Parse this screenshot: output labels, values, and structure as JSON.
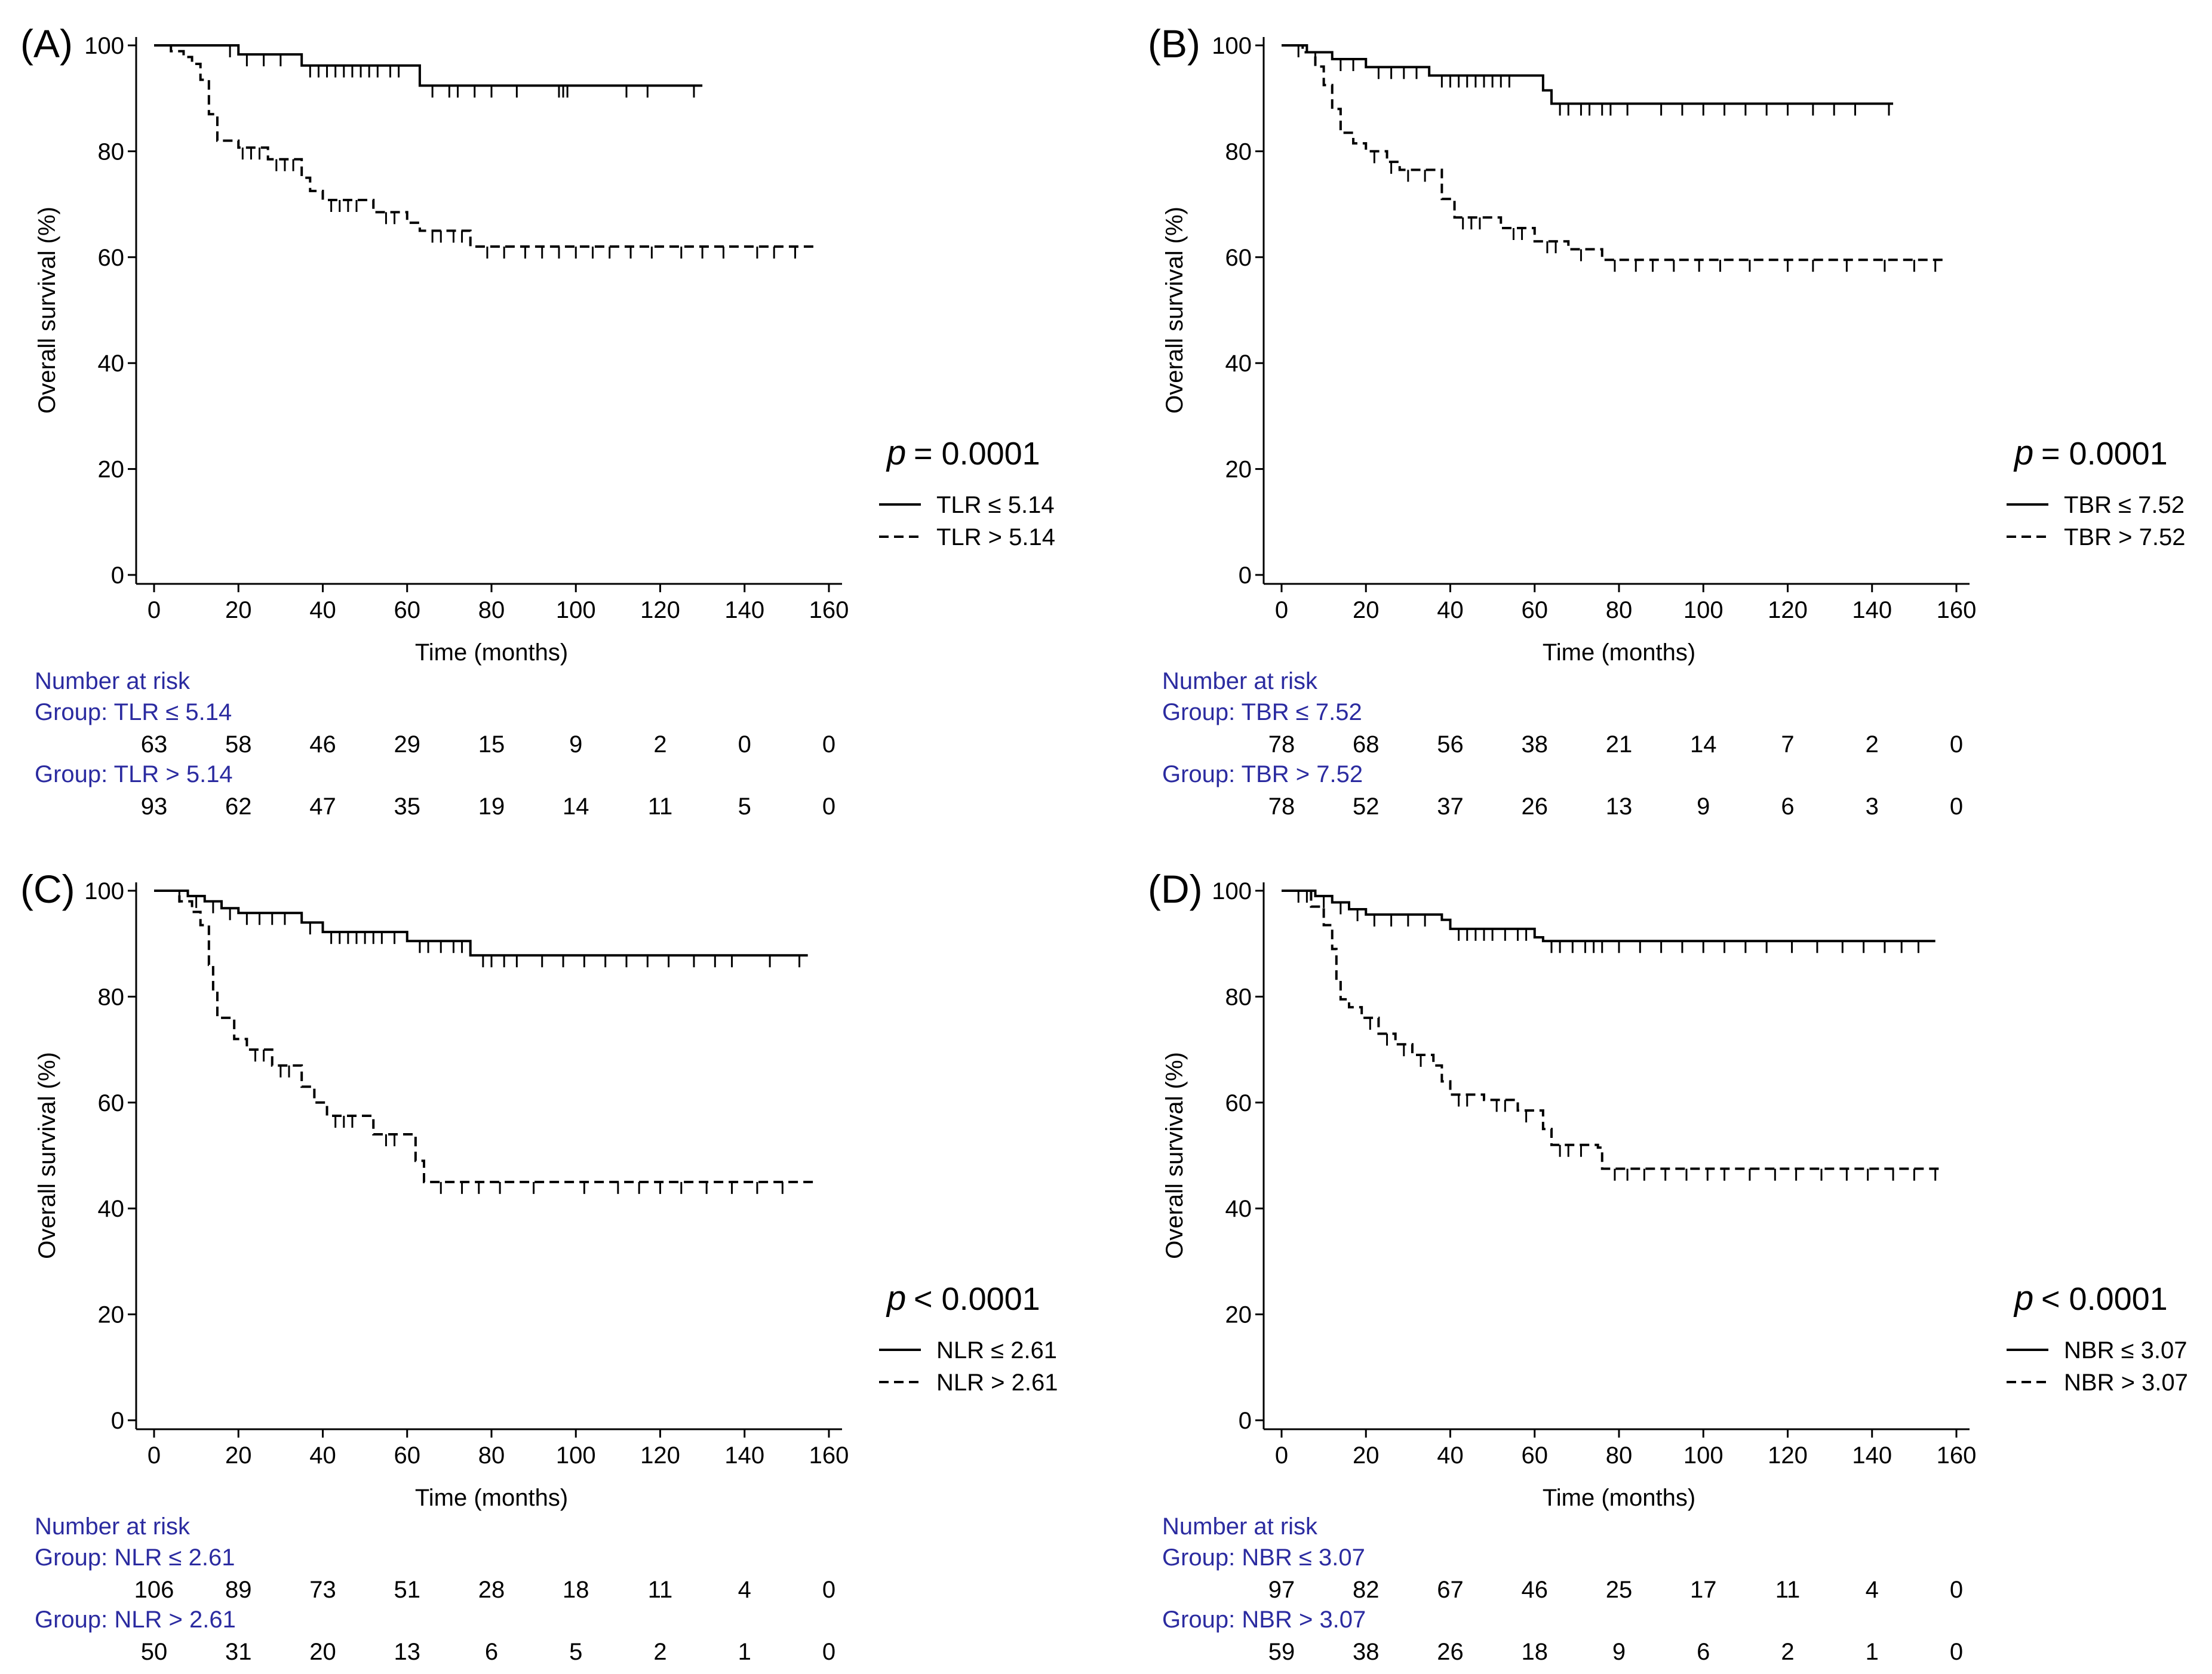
{
  "colors": {
    "line": "#000000",
    "risk_label": "#2b2ba0",
    "text": "#000000",
    "axis": "#000000"
  },
  "chart_data": [
    {
      "type": "line",
      "panel_label": "(A)",
      "xlabel": "Time (months)",
      "ylabel": "Overall survival (%)",
      "xlim": [
        0,
        160
      ],
      "ylim": [
        0,
        100
      ],
      "x_ticks": [
        0,
        20,
        40,
        60,
        80,
        100,
        120,
        140,
        160
      ],
      "y_ticks": [
        0,
        20,
        40,
        60,
        80,
        100
      ],
      "p_symbol": "p",
      "p_text": "= 0.0001",
      "series": [
        {
          "name": "TLR ≤ 5.14",
          "dash": "solid",
          "x": [
            0,
            20,
            35,
            63,
            130
          ],
          "y": [
            100,
            98.3,
            96.2,
            92.4,
            92.4
          ],
          "censor_x": [
            18,
            22,
            26,
            30,
            37,
            39,
            41,
            43,
            45,
            47,
            49,
            51,
            53,
            56,
            58,
            66,
            70,
            72,
            76,
            80,
            86,
            96,
            97,
            98,
            112,
            117,
            128
          ]
        },
        {
          "name": "TLR > 5.14",
          "dash": "dashed",
          "x": [
            0,
            4,
            7,
            9,
            11,
            13,
            15,
            20,
            27,
            35,
            37,
            40,
            52,
            60,
            63,
            75,
            157
          ],
          "y": [
            100,
            98.9,
            97.8,
            96.5,
            93.5,
            87,
            82,
            80.7,
            78.5,
            75,
            72.5,
            70.8,
            68.5,
            66.5,
            65,
            62,
            62
          ],
          "censor_x": [
            21,
            23,
            25,
            29,
            31,
            33,
            42,
            44,
            46,
            48,
            55,
            57,
            66,
            68,
            71,
            73,
            79,
            83,
            88,
            92,
            96,
            100,
            104,
            108,
            113,
            118,
            125,
            130,
            135,
            143,
            147,
            152
          ]
        }
      ],
      "risk_table": {
        "title": "Number at risk",
        "x": [
          0,
          20,
          40,
          60,
          80,
          100,
          120,
          140,
          160
        ],
        "groups": [
          {
            "label": "Group: TLR ≤ 5.14",
            "counts": [
              "63",
              "58",
              "46",
              "29",
              "15",
              "9",
              "2",
              "0",
              "0"
            ]
          },
          {
            "label": "Group: TLR > 5.14",
            "counts": [
              "93",
              "62",
              "47",
              "35",
              "19",
              "14",
              "11",
              "5",
              "0"
            ]
          }
        ]
      }
    },
    {
      "type": "line",
      "panel_label": "(B)",
      "xlabel": "Time (months)",
      "ylabel": "Overall survival (%)",
      "xlim": [
        0,
        160
      ],
      "ylim": [
        0,
        100
      ],
      "x_ticks": [
        0,
        20,
        40,
        60,
        80,
        100,
        120,
        140,
        160
      ],
      "y_ticks": [
        0,
        20,
        40,
        60,
        80,
        100
      ],
      "p_symbol": "p",
      "p_text": "= 0.0001",
      "series": [
        {
          "name": "TBR ≤ 7.52",
          "dash": "solid",
          "x": [
            0,
            6,
            12,
            20,
            35,
            62,
            64,
            145
          ],
          "y": [
            100,
            98.7,
            97.4,
            95.9,
            94.3,
            91.5,
            89,
            89
          ],
          "censor_x": [
            4,
            8,
            14,
            17,
            23,
            26,
            29,
            32,
            38,
            40,
            42,
            44,
            46,
            48,
            50,
            52,
            54,
            66,
            68,
            71,
            73,
            76,
            78,
            82,
            90,
            95,
            100,
            105,
            110,
            115,
            120,
            126,
            131,
            136,
            144
          ]
        },
        {
          "name": "TBR > 7.52",
          "dash": "dashed",
          "x": [
            0,
            5,
            8,
            10,
            12,
            14,
            17,
            20,
            25,
            28,
            38,
            41,
            52,
            60,
            68,
            76,
            157
          ],
          "y": [
            100,
            98.7,
            96,
            92.5,
            88,
            83.5,
            81.5,
            80,
            78,
            76.5,
            71,
            67.5,
            65.5,
            63,
            61.5,
            59.5,
            59.5
          ],
          "censor_x": [
            22,
            26,
            30,
            34,
            43,
            45,
            47,
            55,
            57,
            63,
            65,
            71,
            79,
            84,
            88,
            93,
            99,
            104,
            111,
            120,
            126,
            134,
            143,
            150,
            155
          ]
        }
      ],
      "risk_table": {
        "title": "Number at risk",
        "x": [
          0,
          20,
          40,
          60,
          80,
          100,
          120,
          140,
          160
        ],
        "groups": [
          {
            "label": "Group: TBR ≤ 7.52",
            "counts": [
              "78",
              "68",
              "56",
              "38",
              "21",
              "14",
              "7",
              "2",
              "0"
            ]
          },
          {
            "label": "Group: TBR > 7.52",
            "counts": [
              "78",
              "52",
              "37",
              "26",
              "13",
              "9",
              "6",
              "3",
              "0"
            ]
          }
        ]
      }
    },
    {
      "type": "line",
      "panel_label": "(C)",
      "xlabel": "Time (months)",
      "ylabel": "Overall survival (%)",
      "xlim": [
        0,
        160
      ],
      "ylim": [
        0,
        100
      ],
      "x_ticks": [
        0,
        20,
        40,
        60,
        80,
        100,
        120,
        140,
        160
      ],
      "y_ticks": [
        0,
        20,
        40,
        60,
        80,
        100
      ],
      "p_symbol": "p",
      "p_text": "< 0.0001",
      "series": [
        {
          "name": "NLR ≤ 2.61",
          "dash": "solid",
          "x": [
            0,
            8,
            12,
            16,
            20,
            35,
            40,
            60,
            75,
            155
          ],
          "y": [
            100,
            99,
            98,
            96.7,
            95.8,
            94,
            92.2,
            90.5,
            87.8,
            87.8
          ],
          "censor_x": [
            6,
            10,
            14,
            18,
            22,
            25,
            28,
            31,
            37,
            42,
            44,
            46,
            48,
            50,
            52,
            54,
            57,
            63,
            65,
            68,
            71,
            73,
            78,
            80,
            83,
            86,
            92,
            97,
            102,
            107,
            112,
            117,
            122,
            128,
            133,
            137,
            146,
            153
          ]
        },
        {
          "name": "NLR > 2.61",
          "dash": "dashed",
          "x": [
            0,
            6,
            9,
            11,
            13,
            14,
            15,
            19,
            22,
            28,
            35,
            38,
            41,
            52,
            62,
            64,
            157
          ],
          "y": [
            100,
            98,
            96,
            93.5,
            86,
            81,
            76,
            72,
            70,
            67,
            63,
            60,
            57.5,
            54,
            49,
            45,
            45
          ],
          "censor_x": [
            24,
            26,
            30,
            32,
            43,
            45,
            47,
            55,
            57,
            68,
            73,
            77,
            82,
            90,
            102,
            110,
            115,
            120,
            125,
            131,
            137,
            143,
            149
          ]
        }
      ],
      "risk_table": {
        "title": "Number at risk",
        "x": [
          0,
          20,
          40,
          60,
          80,
          100,
          120,
          140,
          160
        ],
        "groups": [
          {
            "label": "Group: NLR ≤ 2.61",
            "counts": [
              "106",
              "89",
              "73",
              "51",
              "28",
              "18",
              "11",
              "4",
              "0"
            ]
          },
          {
            "label": "Group: NLR > 2.61",
            "counts": [
              "50",
              "31",
              "20",
              "13",
              "6",
              "5",
              "2",
              "1",
              "0"
            ]
          }
        ]
      }
    },
    {
      "type": "line",
      "panel_label": "(D)",
      "xlabel": "Time (months)",
      "ylabel": "Overall survival (%)",
      "xlim": [
        0,
        160
      ],
      "ylim": [
        0,
        100
      ],
      "x_ticks": [
        0,
        20,
        40,
        60,
        80,
        100,
        120,
        140,
        160
      ],
      "y_ticks": [
        0,
        20,
        40,
        60,
        80,
        100
      ],
      "p_symbol": "p",
      "p_text": "< 0.0001",
      "series": [
        {
          "name": "NBR ≤ 3.07",
          "dash": "solid",
          "x": [
            0,
            8,
            12,
            16,
            20,
            38,
            40,
            60,
            62,
            155
          ],
          "y": [
            100,
            99,
            97.8,
            96.5,
            95.5,
            94.5,
            92.8,
            91.2,
            90.5,
            90.5
          ],
          "censor_x": [
            4,
            6,
            10,
            14,
            18,
            22,
            26,
            30,
            34,
            42,
            44,
            46,
            48,
            50,
            53,
            56,
            58,
            64,
            66,
            69,
            72,
            74,
            76,
            80,
            85,
            90,
            95,
            100,
            105,
            110,
            115,
            121,
            127,
            133,
            138,
            143,
            147,
            151
          ]
        },
        {
          "name": "NBR > 3.07",
          "dash": "dashed",
          "x": [
            0,
            7,
            10,
            12,
            13,
            14,
            16,
            19,
            23,
            27,
            31,
            36,
            38,
            40,
            48,
            56,
            62,
            64,
            75,
            76,
            157
          ],
          "y": [
            100,
            97,
            93.5,
            89,
            83,
            79.5,
            78,
            76,
            73,
            71,
            69,
            67,
            64,
            61.5,
            60.5,
            58.5,
            55,
            52,
            51.5,
            47.5,
            47.5
          ],
          "censor_x": [
            21,
            25,
            29,
            33,
            42,
            44,
            51,
            53,
            58,
            66,
            68,
            71,
            79,
            82,
            86,
            91,
            96,
            101,
            105,
            111,
            117,
            122,
            128,
            134,
            139,
            145,
            150,
            155
          ]
        }
      ],
      "risk_table": {
        "title": "Number at risk",
        "x": [
          0,
          20,
          40,
          60,
          80,
          100,
          120,
          140,
          160
        ],
        "groups": [
          {
            "label": "Group: NBR ≤ 3.07",
            "counts": [
              "97",
              "82",
              "67",
              "46",
              "25",
              "17",
              "11",
              "4",
              "0"
            ]
          },
          {
            "label": "Group: NBR > 3.07",
            "counts": [
              "59",
              "38",
              "26",
              "18",
              "9",
              "6",
              "2",
              "1",
              "0"
            ]
          }
        ]
      }
    }
  ]
}
